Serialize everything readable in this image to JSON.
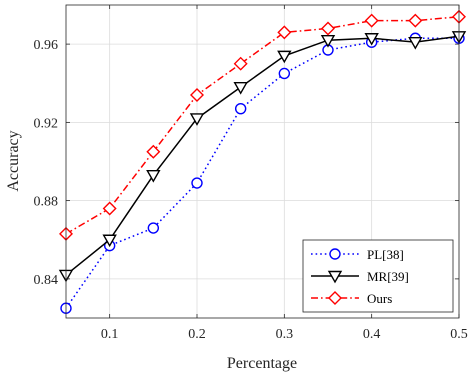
{
  "chart_data": {
    "type": "line",
    "title": "",
    "xlabel": "Percentage",
    "ylabel": "Accuracy",
    "xlim": [
      0.05,
      0.5
    ],
    "ylim": [
      0.82,
      0.98
    ],
    "x_ticks": [
      0.1,
      0.2,
      0.3,
      0.4,
      0.5
    ],
    "x_tick_labels": [
      "0.1",
      "0.2",
      "0.3",
      "0.4",
      "0.5"
    ],
    "y_ticks": [
      0.84,
      0.88,
      0.92,
      0.96
    ],
    "y_tick_labels": [
      "0.84",
      "0.88",
      "0.92",
      "0.96"
    ],
    "grid": true,
    "legend_position": "bottom-right",
    "x": [
      0.05,
      0.1,
      0.15,
      0.2,
      0.25,
      0.3,
      0.35,
      0.4,
      0.45,
      0.5
    ],
    "series": [
      {
        "name": "PL[38]",
        "values": [
          0.825,
          0.857,
          0.866,
          0.889,
          0.927,
          0.945,
          0.957,
          0.961,
          0.963,
          0.963
        ],
        "color": "#0000ff",
        "line_style": "dotted",
        "marker": "circle"
      },
      {
        "name": "MR[39]",
        "values": [
          0.842,
          0.86,
          0.893,
          0.922,
          0.938,
          0.954,
          0.962,
          0.963,
          0.961,
          0.964
        ],
        "color": "#000000",
        "line_style": "solid",
        "marker": "triangle-down"
      },
      {
        "name": "Ours",
        "values": [
          0.863,
          0.876,
          0.905,
          0.934,
          0.95,
          0.966,
          0.968,
          0.972,
          0.972,
          0.974
        ],
        "color": "#ff0000",
        "line_style": "dash-dot",
        "marker": "diamond"
      }
    ]
  }
}
